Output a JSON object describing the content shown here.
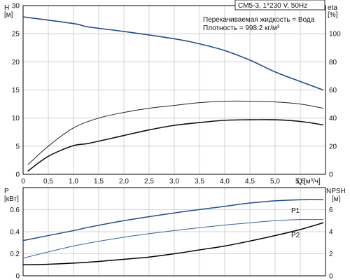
{
  "header": {
    "model": "CM5-3, 1*230 V, 50Hz",
    "liquid": "Перекачиваемая жидкость = Вода",
    "density": "Плотность = 998.2 кг/м³"
  },
  "chart_data": [
    {
      "type": "line",
      "panel": "top",
      "left_axis": {
        "title": "H",
        "unit": "[м]",
        "range": [
          0,
          30
        ],
        "ticks": [
          0,
          5,
          10,
          15,
          20,
          25,
          30
        ]
      },
      "right_axis": {
        "title": "eta",
        "unit": "[%]",
        "range": [
          0,
          120
        ],
        "ticks": [
          0,
          20,
          40,
          60,
          80,
          100
        ]
      },
      "x_axis": {
        "title": "Q",
        "unit": "[м³/ч]",
        "range": [
          0,
          6
        ],
        "ticks": [
          "0",
          "0,5",
          "1,0",
          "1,5",
          "2,0",
          "2,5",
          "3,0",
          "3,5",
          "4,0",
          "4,5",
          "5,0",
          "5,5"
        ],
        "tick_values": [
          0,
          0.5,
          1,
          1.5,
          2,
          2.5,
          3,
          3.5,
          4,
          4.5,
          5,
          5.5
        ]
      },
      "series": [
        {
          "axis": "left",
          "color": "#1f4e8c",
          "x": [
            0,
            1,
            1.3,
            2,
            3,
            3.5,
            4,
            4.5,
            5,
            5.5,
            5.95
          ],
          "y": [
            28,
            26.8,
            26.2,
            25.4,
            24.1,
            23.2,
            22,
            20.3,
            18.2,
            16.5,
            15
          ]
        },
        {
          "axis": "right",
          "color": "#222222",
          "x": [
            0.1,
            0.5,
            1,
            1.5,
            2,
            2.5,
            3,
            3.5,
            4,
            4.5,
            5,
            5.5,
            5.95
          ],
          "y": [
            7,
            20,
            33,
            40,
            44,
            47,
            49,
            51,
            52,
            52,
            51.5,
            50,
            47
          ]
        },
        {
          "axis": "left",
          "color": "#111111",
          "x": [
            0.1,
            0.5,
            1,
            1.3,
            2,
            2.5,
            3,
            3.5,
            4,
            4.5,
            5,
            5.5,
            5.95
          ],
          "y": [
            0.6,
            3.2,
            5.1,
            5.5,
            6.9,
            7.9,
            8.7,
            9.2,
            9.6,
            9.7,
            9.7,
            9.4,
            8.8
          ]
        }
      ]
    },
    {
      "type": "line",
      "panel": "bottom",
      "left_axis": {
        "title": "P",
        "unit": "[кВт]",
        "range": [
          0,
          0.8
        ],
        "ticks": [
          0,
          0.2,
          0.4,
          0.6
        ]
      },
      "right_axis": {
        "title": "NPSH",
        "unit": "[м]",
        "range": [
          0,
          8
        ],
        "ticks": [
          0,
          2,
          4,
          6
        ]
      },
      "x_axis": {
        "range": [
          0,
          6
        ]
      },
      "series": [
        {
          "name": "P1",
          "axis": "left",
          "color": "#1f4e8c",
          "x": [
            0,
            1,
            1.3,
            2,
            3,
            4,
            4.5,
            5,
            5.5,
            5.95
          ],
          "y": [
            0.32,
            0.41,
            0.44,
            0.5,
            0.57,
            0.63,
            0.66,
            0.68,
            0.69,
            0.69
          ]
        },
        {
          "axis": "left",
          "color": "#3a5f9a",
          "x": [
            0,
            1,
            2,
            3,
            4,
            4.5,
            5,
            5.5,
            5.95
          ],
          "y": [
            0.16,
            0.27,
            0.35,
            0.41,
            0.46,
            0.48,
            0.5,
            0.51,
            0.51
          ]
        },
        {
          "name": "P2",
          "axis": "right",
          "color": "#000000",
          "x": [
            0,
            0.5,
            1,
            1.5,
            2,
            2.5,
            3,
            3.5,
            4,
            4.5,
            5,
            5.5,
            5.95
          ],
          "y": [
            1,
            1.05,
            1.15,
            1.3,
            1.5,
            1.7,
            2.0,
            2.35,
            2.7,
            3.15,
            3.65,
            4.2,
            4.8
          ]
        }
      ]
    }
  ]
}
